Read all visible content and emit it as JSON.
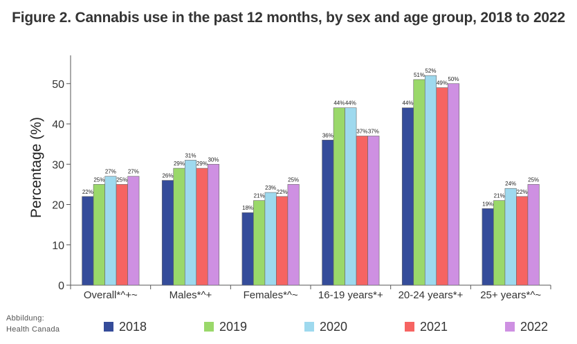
{
  "title": "Figure 2. Cannabis use in the past 12 months, by sex and age group, 2018 to 2022",
  "source": {
    "line1": "Abbildung:",
    "line2": "Health Canada"
  },
  "chart_data": {
    "type": "bar",
    "title": "Figure 2. Cannabis use in the past 12 months, by sex and age group, 2018 to 2022",
    "xlabel": "",
    "ylabel": "Percentage (%)",
    "ylim": [
      0,
      57
    ],
    "yticks": [
      0,
      10,
      20,
      30,
      40,
      50
    ],
    "grid": false,
    "legend_position": "bottom",
    "categories": [
      "Overall*^+~",
      "Males*^+",
      "Females*^~",
      "16-19 years*+",
      "20-24 years*+",
      "25+ years*^~"
    ],
    "series": [
      {
        "name": "2018",
        "color": "#354c9a",
        "values": [
          22,
          26,
          18,
          36,
          44,
          19
        ]
      },
      {
        "name": "2019",
        "color": "#9ad86a",
        "values": [
          25,
          29,
          21,
          44,
          51,
          21
        ]
      },
      {
        "name": "2020",
        "color": "#9ed9ee",
        "values": [
          27,
          31,
          23,
          44,
          52,
          24
        ]
      },
      {
        "name": "2021",
        "color": "#f66462",
        "values": [
          25,
          29,
          22,
          37,
          49,
          22
        ]
      },
      {
        "name": "2022",
        "color": "#ce90e2",
        "values": [
          27,
          30,
          25,
          37,
          50,
          25
        ]
      }
    ],
    "value_suffix": "%"
  }
}
